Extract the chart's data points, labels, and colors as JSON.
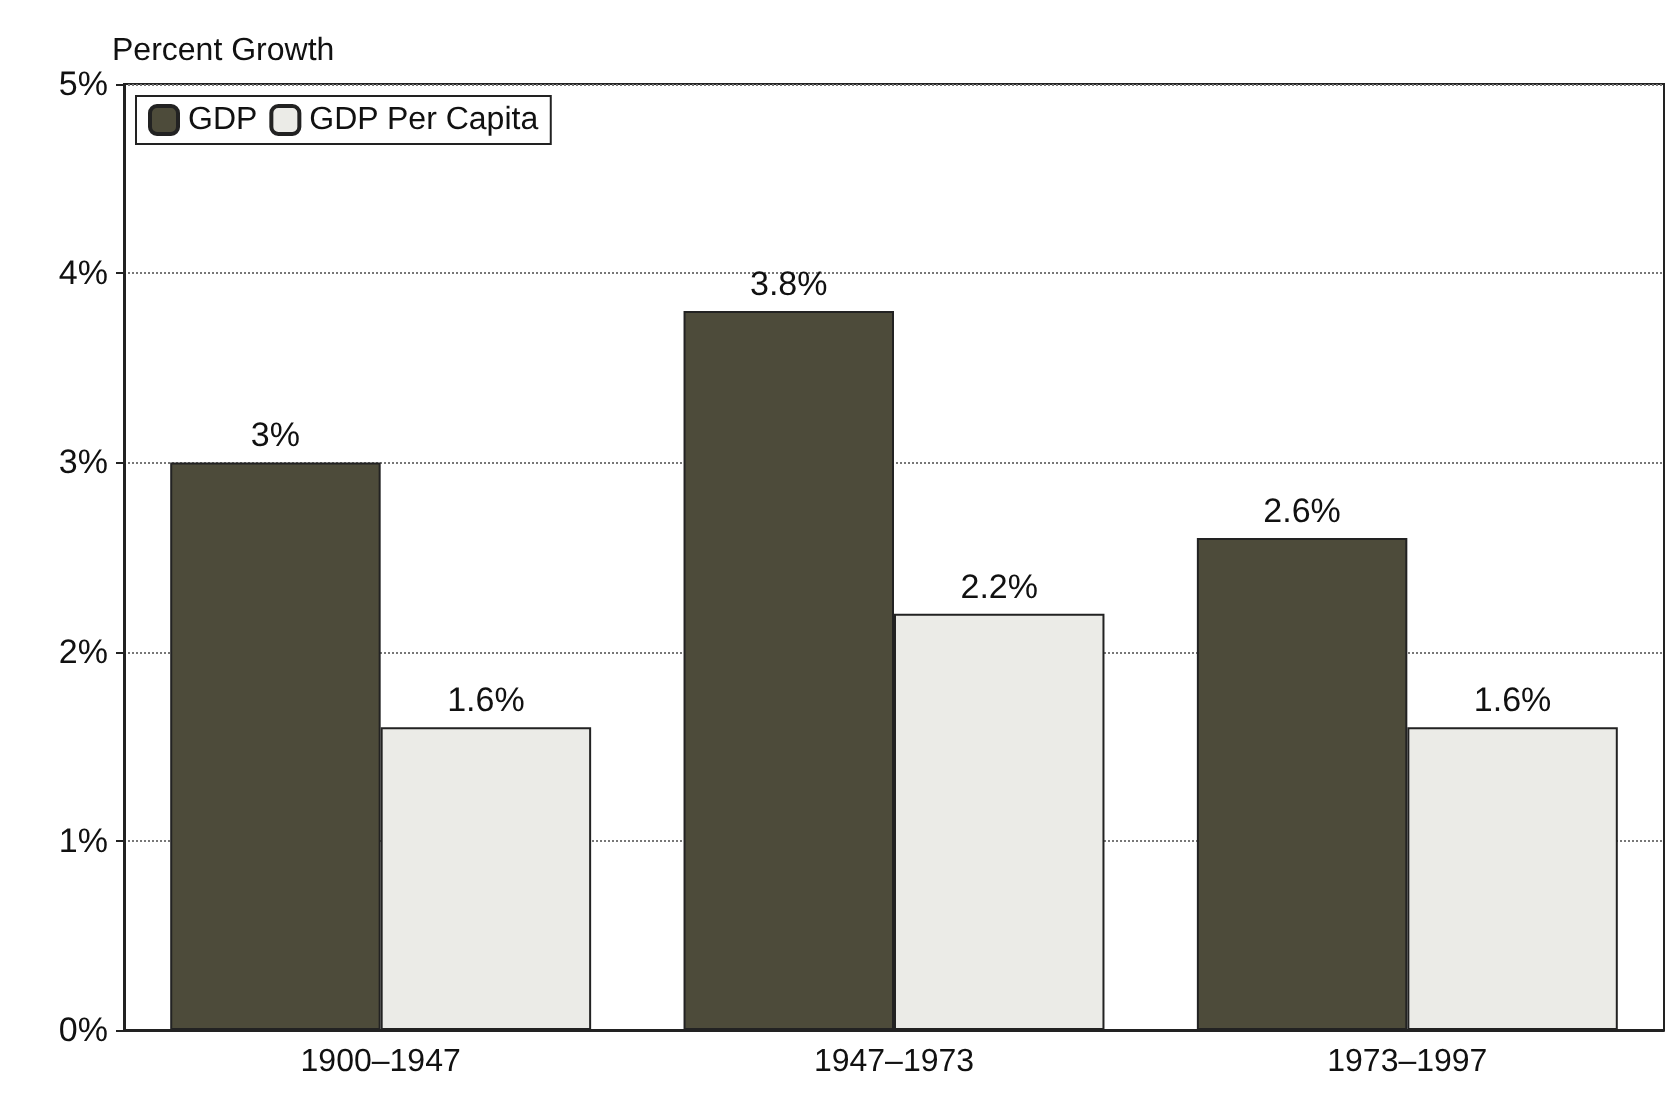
{
  "chart_data": {
    "type": "bar",
    "ylabel": "Percent Growth",
    "categories": [
      "1900–1947",
      "1947–1973",
      "1973–1997"
    ],
    "series": [
      {
        "name": "GDP",
        "color": "#4d4b3a",
        "values": [
          3,
          3.8,
          2.6
        ],
        "value_labels": [
          "3%",
          "3.8%",
          "2.6%"
        ]
      },
      {
        "name": "GDP Per Capita",
        "color": "#ebebe7",
        "values": [
          1.6,
          2.2,
          1.6
        ],
        "value_labels": [
          "1.6%",
          "2.2%",
          "1.6%"
        ]
      }
    ],
    "ylim": [
      0,
      5
    ],
    "yticks": [
      {
        "value": 0,
        "label": "0%"
      },
      {
        "value": 1,
        "label": "1%"
      },
      {
        "value": 2,
        "label": "2%"
      },
      {
        "value": 3,
        "label": "3%"
      },
      {
        "value": 4,
        "label": "4%"
      },
      {
        "value": 5,
        "label": "5%"
      }
    ],
    "grid": "y",
    "legend": "top left"
  }
}
